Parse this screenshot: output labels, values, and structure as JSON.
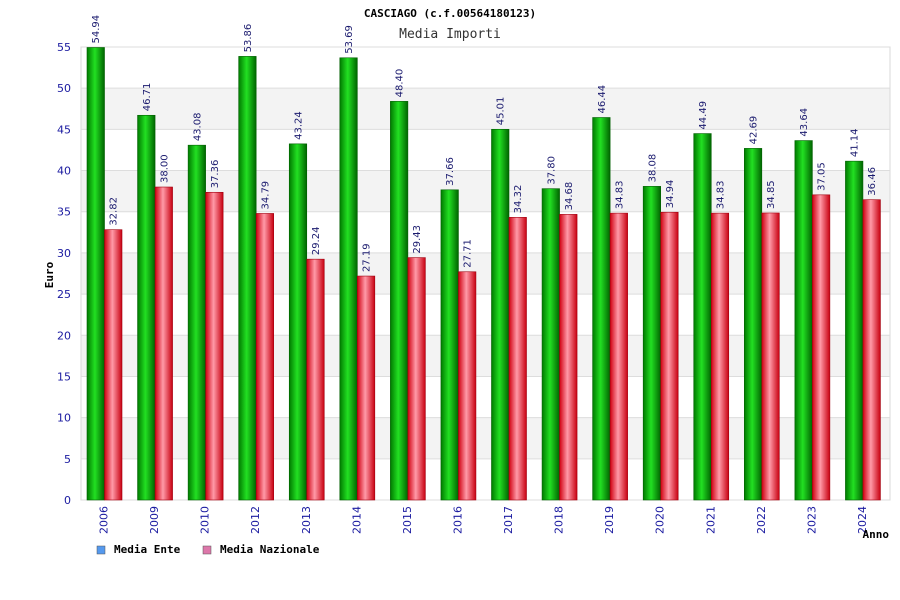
{
  "chart_data": {
    "type": "bar",
    "title": "CASCIAGO (c.f.00564180123)",
    "subtitle": "Media Importi",
    "ylabel": "Euro",
    "xlabel": "Anno",
    "ylim": [
      0,
      55
    ],
    "yticks": [
      0,
      5,
      10,
      15,
      20,
      25,
      30,
      35,
      40,
      45,
      50,
      55
    ],
    "grid": true,
    "categories": [
      "2006",
      "2009",
      "2010",
      "2012",
      "2013",
      "2014",
      "2015",
      "2016",
      "2017",
      "2018",
      "2019",
      "2020",
      "2021",
      "2022",
      "2023",
      "2024"
    ],
    "series": [
      {
        "name": "Media Ente",
        "color": "#00a000",
        "legend_color": "#5599ee",
        "values": [
          54.94,
          46.71,
          43.08,
          53.86,
          43.24,
          53.69,
          48.4,
          37.66,
          45.01,
          37.8,
          46.44,
          38.08,
          44.49,
          42.69,
          43.64,
          41.14
        ],
        "labels": [
          "54.94",
          "46.71",
          "43.08",
          "53.86",
          "43.24",
          "53.69",
          "48.40",
          "37.66",
          "45.01",
          "37.80",
          "46.44",
          "38.08",
          "44.49",
          "42.69",
          "43.64",
          "41.14"
        ]
      },
      {
        "name": "Media Nazionale",
        "color": "#e01020",
        "legend_color": "#dd77aa",
        "values": [
          32.82,
          38.0,
          37.36,
          34.79,
          29.24,
          27.19,
          29.43,
          27.71,
          34.32,
          34.68,
          34.83,
          34.94,
          34.83,
          34.85,
          37.05,
          36.46
        ],
        "labels": [
          "32.82",
          "38.00",
          "37.36",
          "34.79",
          "29.24",
          "27.19",
          "29.43",
          "27.71",
          "34.32",
          "34.68",
          "34.83",
          "34.94",
          "34.83",
          "34.85",
          "37.05",
          "36.46"
        ]
      }
    ],
    "legend_position": "bottom-left"
  }
}
